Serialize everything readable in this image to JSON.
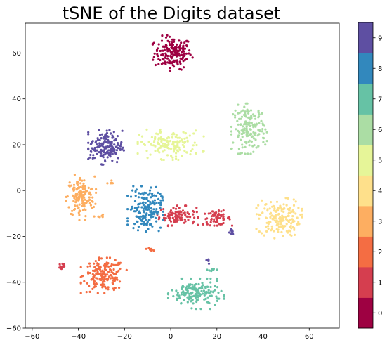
{
  "chart_data": {
    "type": "scatter",
    "title": "tSNE of the Digits dataset",
    "xlabel": "",
    "ylabel": "",
    "xlim": [
      -63,
      73
    ],
    "ylim": [
      -60,
      73
    ],
    "xticks": [
      -60,
      -40,
      -20,
      0,
      20,
      40,
      60
    ],
    "yticks": [
      -60,
      -40,
      -20,
      0,
      20,
      40,
      60
    ],
    "grid": false,
    "colormap": "Spectral",
    "colorbar": {
      "ticks": [
        "0",
        "1",
        "2",
        "3",
        "4",
        "5",
        "6",
        "7",
        "8",
        "9"
      ],
      "colors": [
        "#9e0142",
        "#d53e4f",
        "#f46d43",
        "#fdae61",
        "#fee08b",
        "#e6f598",
        "#abdda4",
        "#66c2a5",
        "#3288bd",
        "#5e4fa2"
      ]
    },
    "clusters": [
      {
        "label": 0,
        "cx": 1,
        "cy": 60,
        "rx": 8,
        "ry": 7,
        "n": 180
      },
      {
        "label": 1,
        "cx": 3,
        "cy": -11,
        "rx": 8,
        "ry": 4,
        "n": 95
      },
      {
        "label": 1,
        "cx": 20,
        "cy": -12,
        "rx": 6,
        "ry": 3,
        "n": 60
      },
      {
        "label": 1,
        "cx": -47,
        "cy": -33,
        "rx": 1.5,
        "ry": 2,
        "n": 15
      },
      {
        "label": 2,
        "cx": -29,
        "cy": -37,
        "rx": 9,
        "ry": 7,
        "n": 175
      },
      {
        "label": 2,
        "cx": -9,
        "cy": -25.5,
        "rx": 1.5,
        "ry": 0.8,
        "n": 8
      },
      {
        "label": 3,
        "cx": -39,
        "cy": -3,
        "rx": 6,
        "ry": 9,
        "n": 150
      },
      {
        "label": 3,
        "cx": -26,
        "cy": 3,
        "rx": 1.3,
        "ry": 1.5,
        "n": 6
      },
      {
        "label": 3,
        "cx": -31,
        "cy": -11,
        "rx": 2,
        "ry": 1,
        "n": 7
      },
      {
        "label": 4,
        "cx": 47,
        "cy": -12,
        "rx": 9,
        "ry": 8,
        "n": 170
      },
      {
        "label": 5,
        "cx": 0,
        "cy": 20,
        "rx": 13,
        "ry": 6,
        "n": 150
      },
      {
        "label": 6,
        "cx": 34,
        "cy": 27,
        "rx": 7,
        "ry": 10,
        "n": 170
      },
      {
        "label": 7,
        "cx": 11,
        "cy": -45,
        "rx": 11,
        "ry": 6,
        "n": 170
      },
      {
        "label": 7,
        "cx": 18,
        "cy": -34.5,
        "rx": 2,
        "ry": 0.8,
        "n": 8
      },
      {
        "label": 8,
        "cx": -11,
        "cy": -8,
        "rx": 7,
        "ry": 9,
        "n": 170
      },
      {
        "label": 9,
        "cx": -28,
        "cy": 19,
        "rx": 7,
        "ry": 7,
        "n": 165
      },
      {
        "label": 9,
        "cx": 26,
        "cy": -18,
        "rx": 1.5,
        "ry": 2,
        "n": 12
      },
      {
        "label": 9,
        "cx": 16,
        "cy": -30,
        "rx": 1,
        "ry": 2,
        "n": 6
      }
    ]
  }
}
